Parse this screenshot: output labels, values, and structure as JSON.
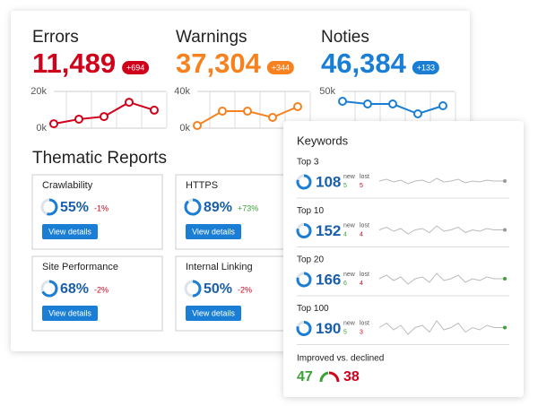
{
  "metrics": [
    {
      "title": "Errors",
      "total": "11,489",
      "change": "+694",
      "color": "#d0021b",
      "ylim": [
        0,
        20000
      ],
      "yticks": [
        {
          "value": 0,
          "label": "0k"
        },
        {
          "value": 20000,
          "label": "20k"
        }
      ],
      "values": [
        2400,
        4900,
        6300,
        14100,
        9800
      ]
    },
    {
      "title": "Warnings",
      "total": "37,304",
      "change": "+344",
      "color": "#f5821f",
      "ylim": [
        0,
        40000
      ],
      "yticks": [
        {
          "value": 0,
          "label": "0k"
        },
        {
          "value": 40000,
          "label": "40k"
        }
      ],
      "values": [
        2900,
        18500,
        18500,
        11700,
        23400
      ]
    },
    {
      "title": "Noties",
      "total": "46,384",
      "change": "+133",
      "color": "#1a7fd4",
      "ylim": [
        0,
        50000
      ],
      "yticks": [
        {
          "value": 50000,
          "label": "50k"
        }
      ],
      "values": [
        36600,
        32900,
        32900,
        19500,
        30500
      ]
    }
  ],
  "thematic": {
    "title": "Thematic Reports",
    "button": "View details",
    "reports": [
      {
        "name": "Crawlability",
        "score": 55,
        "score_label": "55%",
        "change": "-1%",
        "change_color": "#d0021b"
      },
      {
        "name": "HTTPS",
        "score": 89,
        "score_label": "89%",
        "change": "+73%",
        "change_color": "#3aa335"
      },
      {
        "name": "Site Performance",
        "score": 68,
        "score_label": "68%",
        "change": "-2%",
        "change_color": "#d0021b"
      },
      {
        "name": "Internal Linking",
        "score": 50,
        "score_label": "50%",
        "change": "-2%",
        "change_color": "#d0021b"
      }
    ]
  },
  "keywords": {
    "title": "Keywords",
    "new_label": "new",
    "lost_label": "lost",
    "groups": [
      {
        "name": "Top 3",
        "count": 108,
        "new": 5,
        "lost": 5
      },
      {
        "name": "Top 10",
        "count": 152,
        "new": 4,
        "lost": 4
      },
      {
        "name": "Top 20",
        "count": 166,
        "new": 6,
        "lost": 4
      },
      {
        "name": "Top 100",
        "count": 190,
        "new": 5,
        "lost": 3
      }
    ],
    "summary": {
      "label": "Improved vs. declined",
      "improved": 47,
      "declined": 38
    }
  }
}
